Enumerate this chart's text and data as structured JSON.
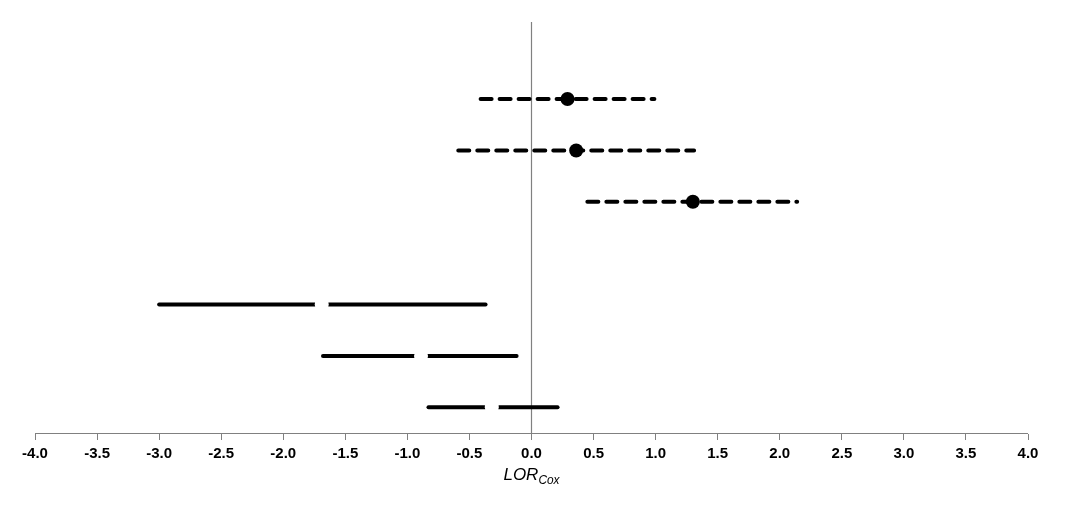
{
  "chart_data": {
    "type": "scatter",
    "orientation": "horizontal",
    "xlabel": "LOR$_{Cox}$",
    "categories": [
      null,
      null,
      null,
      null,
      null,
      null,
      null,
      null
    ],
    "xlim": [
      -4,
      4
    ],
    "xticks": [
      {
        "value": -4,
        "label": "-4.0"
      },
      {
        "value": -3.5,
        "label": "-3.5"
      },
      {
        "value": -3,
        "label": "-3.0"
      },
      {
        "value": -2.5,
        "label": "-2.5"
      },
      {
        "value": -2,
        "label": "-2.0"
      },
      {
        "value": -1.5,
        "label": "-1.5"
      },
      {
        "value": -1,
        "label": "-1.0"
      },
      {
        "value": -0.5,
        "label": "-0.5"
      },
      {
        "value": 0,
        "label": "0.0"
      },
      {
        "value": 0.5,
        "label": "0.5"
      },
      {
        "value": 1,
        "label": "1.0"
      },
      {
        "value": 1.5,
        "label": "1.5"
      },
      {
        "value": 2,
        "label": "2.0"
      },
      {
        "value": 2.5,
        "label": "2.5"
      },
      {
        "value": 3,
        "label": "3.0"
      },
      {
        "value": 3.5,
        "label": "3.5"
      },
      {
        "value": 4,
        "label": "4.0"
      }
    ],
    "tick_labels": "x",
    "grid": false,
    "ref_lines": [
      {
        "axis": "x",
        "value": 0,
        "color": "#808080"
      }
    ],
    "series": [
      {
        "color": "#000000",
        "marker": "circle",
        "line_style": "dashed",
        "values": [
          null,
          0.29,
          0.36,
          1.3,
          null,
          null,
          null,
          null
        ],
        "errors": [
          null,
          [
            -0.41,
            0.99
          ],
          [
            -0.59,
            1.31
          ],
          [
            0.45,
            2.14
          ],
          null,
          null,
          null,
          null
        ]
      },
      {
        "color": "#000000",
        "colors": [
          null,
          null,
          null,
          null,
          null,
          "#ffffff",
          "#ffffff",
          "#ffffff"
        ],
        "marker": "circle",
        "line_style": "solid",
        "values": [
          null,
          null,
          null,
          null,
          null,
          -1.69,
          -0.89,
          -0.32
        ],
        "errors": [
          null,
          null,
          null,
          null,
          null,
          [
            -3.0,
            -0.37
          ],
          [
            -1.68,
            -0.12
          ],
          [
            -0.83,
            0.21
          ]
        ]
      }
    ]
  }
}
